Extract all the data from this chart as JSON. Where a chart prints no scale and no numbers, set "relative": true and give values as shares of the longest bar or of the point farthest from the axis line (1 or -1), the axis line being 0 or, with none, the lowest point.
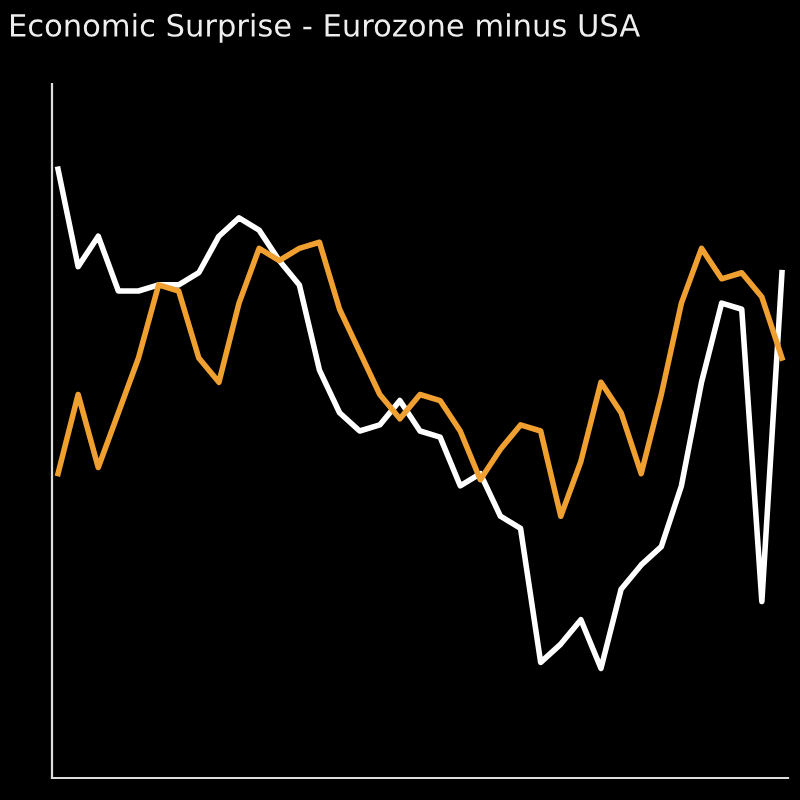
{
  "chart_data": {
    "type": "line",
    "title": "Economic Surprise - Eurozone minus USA",
    "relative": true,
    "legend": false,
    "marker": "none",
    "line_style": "solid",
    "categories": [
      null,
      null,
      null,
      null,
      null,
      null,
      null,
      null,
      null,
      null,
      null,
      null,
      null,
      null,
      null,
      null,
      null,
      null,
      null,
      null,
      null,
      null,
      null,
      null,
      null,
      null,
      null,
      null,
      null,
      null,
      null,
      null,
      null,
      null,
      null,
      null,
      null
    ],
    "series": [
      {
        "color": "#ffffff",
        "values": [
          1.0,
          0.84,
          0.89,
          0.8,
          0.8,
          0.81,
          0.81,
          0.83,
          0.89,
          0.92,
          0.9,
          0.85,
          0.81,
          0.67,
          0.6,
          0.57,
          0.58,
          0.62,
          0.57,
          0.56,
          0.48,
          0.5,
          0.43,
          0.41,
          0.19,
          0.22,
          0.26,
          0.18,
          0.31,
          0.35,
          0.38,
          0.48,
          0.65,
          0.78,
          0.77,
          0.29,
          0.83
        ]
      },
      {
        "color": "#f0a030",
        "values": [
          0.5,
          0.63,
          0.51,
          0.6,
          0.69,
          0.81,
          0.8,
          0.69,
          0.65,
          0.78,
          0.87,
          0.85,
          0.87,
          0.88,
          0.77,
          0.7,
          0.63,
          0.59,
          0.63,
          0.62,
          0.57,
          0.49,
          0.54,
          0.58,
          0.57,
          0.43,
          0.52,
          0.65,
          0.6,
          0.5,
          0.63,
          0.78,
          0.87,
          0.82,
          0.83,
          0.79,
          0.69
        ]
      }
    ]
  }
}
